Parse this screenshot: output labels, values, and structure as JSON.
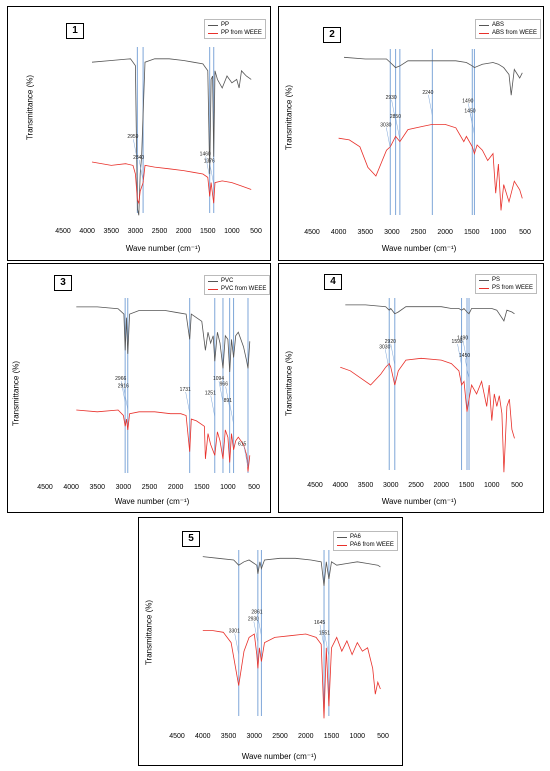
{
  "figure": {
    "xlabel": "Wave number (cm⁻¹)",
    "ylabel": "Transmittance (%)",
    "colors": {
      "reference": "#555555",
      "weee": "#e8302a",
      "marker": "#7ea6d8"
    }
  },
  "chart_data": [
    {
      "type": "line",
      "panel_label": "1",
      "xlabel": "Wave number (cm⁻¹)",
      "ylabel": "Transmittance (%)",
      "xlim": [
        4500,
        500
      ],
      "xticks": [
        4500,
        4000,
        3500,
        3000,
        2500,
        2000,
        1500,
        1000,
        500
      ],
      "legend": [
        "PP",
        "PP from WEEE"
      ],
      "legend_position": "top-right",
      "markers": [
        2959,
        2840,
        1460,
        1376
      ],
      "annotations": [
        {
          "label": "2959",
          "x": 2959,
          "y": 0.6
        },
        {
          "label": "2840",
          "x": 2840,
          "y": 0.72
        },
        {
          "label": "1460",
          "x": 1460,
          "y": 0.7
        },
        {
          "label": "1376",
          "x": 1376,
          "y": 0.74
        }
      ],
      "series": [
        {
          "name": "PP",
          "x": [
            3900,
            3500,
            3100,
            3000,
            2959,
            2930,
            2900,
            2870,
            2840,
            2800,
            2600,
            2300,
            2000,
            1800,
            1600,
            1500,
            1460,
            1430,
            1400,
            1376,
            1350,
            1300,
            1200,
            1100,
            1000,
            900,
            850,
            800,
            700,
            600
          ],
          "y": [
            0.1,
            0.09,
            0.08,
            0.12,
            0.95,
            0.99,
            0.75,
            0.65,
            0.4,
            0.1,
            0.08,
            0.08,
            0.09,
            0.1,
            0.11,
            0.15,
            0.75,
            0.2,
            0.18,
            0.65,
            0.15,
            0.2,
            0.25,
            0.18,
            0.22,
            0.2,
            0.25,
            0.15,
            0.18,
            0.2
          ]
        },
        {
          "name": "PP from WEEE",
          "x": [
            3900,
            3500,
            3200,
            3050,
            3000,
            2959,
            2930,
            2900,
            2840,
            2800,
            2600,
            2300,
            2000,
            1800,
            1600,
            1500,
            1460,
            1430,
            1376,
            1350,
            1200,
            1000,
            800,
            600
          ],
          "y": [
            0.68,
            0.7,
            0.69,
            0.7,
            0.75,
            0.9,
            0.92,
            0.85,
            0.8,
            0.7,
            0.71,
            0.72,
            0.73,
            0.74,
            0.75,
            0.77,
            0.88,
            0.8,
            0.92,
            0.8,
            0.79,
            0.8,
            0.82,
            0.84
          ]
        }
      ]
    },
    {
      "type": "line",
      "panel_label": "2",
      "xlabel": "Wave number (cm⁻¹)",
      "ylabel": "Transmittance (%)",
      "xlim": [
        4500,
        500
      ],
      "xticks": [
        4500,
        4000,
        3500,
        3000,
        2500,
        2000,
        1500,
        1000,
        500
      ],
      "legend": [
        "ABS",
        "ABS from WEEE"
      ],
      "legend_position": "top-right",
      "markers": [
        3030,
        2930,
        2850,
        2240,
        1490,
        1450
      ],
      "annotations": [
        {
          "label": "3030",
          "x": 3030,
          "y": 0.52
        },
        {
          "label": "2930",
          "x": 2930,
          "y": 0.36
        },
        {
          "label": "2850",
          "x": 2850,
          "y": 0.47
        },
        {
          "label": "2240",
          "x": 2240,
          "y": 0.33
        },
        {
          "label": "1490",
          "x": 1490,
          "y": 0.38
        },
        {
          "label": "1450",
          "x": 1450,
          "y": 0.44
        }
      ],
      "series": [
        {
          "name": "ABS",
          "x": [
            3900,
            3500,
            3100,
            3030,
            2930,
            2850,
            2700,
            2400,
            2240,
            2000,
            1800,
            1600,
            1490,
            1450,
            1300,
            1100,
            1000,
            900,
            800,
            760,
            700,
            600,
            550
          ],
          "y": [
            0.06,
            0.07,
            0.07,
            0.09,
            0.12,
            0.11,
            0.08,
            0.08,
            0.08,
            0.08,
            0.08,
            0.09,
            0.11,
            0.12,
            0.1,
            0.09,
            0.1,
            0.12,
            0.16,
            0.28,
            0.13,
            0.18,
            0.15
          ]
        },
        {
          "name": "ABS from WEEE",
          "x": [
            4000,
            3800,
            3600,
            3450,
            3300,
            3100,
            3030,
            2930,
            2850,
            2700,
            2400,
            2240,
            2000,
            1800,
            1650,
            1600,
            1490,
            1450,
            1400,
            1300,
            1200,
            1100,
            1050,
            1000,
            950,
            900,
            800,
            700,
            600,
            550
          ],
          "y": [
            0.53,
            0.54,
            0.58,
            0.7,
            0.75,
            0.6,
            0.58,
            0.52,
            0.55,
            0.48,
            0.46,
            0.45,
            0.45,
            0.47,
            0.55,
            0.52,
            0.58,
            0.62,
            0.57,
            0.6,
            0.66,
            0.62,
            0.85,
            0.68,
            0.95,
            0.8,
            0.9,
            0.78,
            0.83,
            0.88
          ]
        }
      ]
    },
    {
      "type": "line",
      "panel_label": "3",
      "xlabel": "Wave number (cm⁻¹)",
      "ylabel": "Transmittance (%)",
      "xlim": [
        4500,
        500
      ],
      "xticks": [
        4500,
        4000,
        3500,
        3000,
        2500,
        2000,
        1500,
        1000,
        500
      ],
      "legend": [
        "PVC",
        "PVC from WEEE"
      ],
      "legend_position": "top-right",
      "markers": [
        2966,
        2916,
        1731,
        1251,
        1094,
        966,
        891,
        615
      ],
      "annotations": [
        {
          "label": "2966",
          "x": 2966,
          "y": 0.52
        },
        {
          "label": "2916",
          "x": 2916,
          "y": 0.56
        },
        {
          "label": "1731",
          "x": 1731,
          "y": 0.58
        },
        {
          "label": "1251",
          "x": 1251,
          "y": 0.6
        },
        {
          "label": "1094",
          "x": 1094,
          "y": 0.52
        },
        {
          "label": "966",
          "x": 966,
          "y": 0.55
        },
        {
          "label": "891",
          "x": 891,
          "y": 0.64
        },
        {
          "label": "615",
          "x": 615,
          "y": 0.88
        }
      ],
      "series": [
        {
          "name": "PVC",
          "x": [
            3900,
            3500,
            3100,
            2990,
            2966,
            2940,
            2916,
            2880,
            2700,
            2500,
            2200,
            2000,
            1800,
            1731,
            1700,
            1600,
            1500,
            1430,
            1380,
            1330,
            1280,
            1251,
            1200,
            1150,
            1094,
            1050,
            1000,
            966,
            930,
            891,
            850,
            800,
            700,
            640,
            615,
            580
          ],
          "y": [
            0.06,
            0.06,
            0.07,
            0.1,
            0.3,
            0.12,
            0.32,
            0.1,
            0.08,
            0.08,
            0.08,
            0.09,
            0.1,
            0.24,
            0.1,
            0.12,
            0.14,
            0.3,
            0.2,
            0.26,
            0.22,
            0.36,
            0.2,
            0.26,
            0.4,
            0.22,
            0.24,
            0.42,
            0.24,
            0.34,
            0.22,
            0.2,
            0.28,
            0.36,
            0.4,
            0.25
          ]
        },
        {
          "name": "PVC from WEEE",
          "x": [
            3900,
            3500,
            3100,
            3000,
            2966,
            2940,
            2916,
            2880,
            2700,
            2400,
            2100,
            1900,
            1800,
            1731,
            1700,
            1600,
            1450,
            1430,
            1380,
            1330,
            1251,
            1200,
            1150,
            1094,
            1050,
            1000,
            966,
            930,
            891,
            850,
            800,
            700,
            640,
            615,
            580
          ],
          "y": [
            0.63,
            0.64,
            0.63,
            0.66,
            0.72,
            0.68,
            0.74,
            0.65,
            0.64,
            0.64,
            0.65,
            0.65,
            0.66,
            0.86,
            0.68,
            0.69,
            0.72,
            0.9,
            0.76,
            0.82,
            0.88,
            0.75,
            0.8,
            0.9,
            0.74,
            0.78,
            0.92,
            0.76,
            0.85,
            0.8,
            0.78,
            0.82,
            0.88,
            0.97,
            0.88
          ]
        }
      ]
    },
    {
      "type": "line",
      "panel_label": "4",
      "xlabel": "Wave number (cm⁻¹)",
      "ylabel": "Transmittance (%)",
      "xlim": [
        4500,
        500
      ],
      "xticks": [
        4500,
        4000,
        3500,
        3000,
        2500,
        2000,
        1500,
        1000,
        500
      ],
      "legend": [
        "PS",
        "PS from WEEE"
      ],
      "legend_position": "top-right",
      "markers": [
        3030,
        2920,
        1598,
        1490,
        1450
      ],
      "annotations": [
        {
          "label": "3030",
          "x": 3030,
          "y": 0.35
        },
        {
          "label": "2920",
          "x": 2920,
          "y": 0.32
        },
        {
          "label": "1598",
          "x": 1598,
          "y": 0.32
        },
        {
          "label": "1490",
          "x": 1490,
          "y": 0.3
        },
        {
          "label": "1450",
          "x": 1450,
          "y": 0.4
        }
      ],
      "series": [
        {
          "name": "PS",
          "x": [
            3900,
            3500,
            3100,
            3030,
            3000,
            2920,
            2850,
            2700,
            2400,
            2000,
            1800,
            1650,
            1598,
            1550,
            1490,
            1450,
            1400,
            1300,
            1100,
            1000,
            900,
            760,
            700,
            600,
            550
          ],
          "y": [
            0.05,
            0.05,
            0.06,
            0.08,
            0.07,
            0.1,
            0.09,
            0.06,
            0.06,
            0.06,
            0.07,
            0.07,
            0.08,
            0.07,
            0.09,
            0.1,
            0.07,
            0.07,
            0.07,
            0.07,
            0.08,
            0.14,
            0.08,
            0.09,
            0.1
          ]
        },
        {
          "name": "PS from WEEE",
          "x": [
            4000,
            3800,
            3600,
            3400,
            3200,
            3100,
            3030,
            3000,
            2920,
            2850,
            2700,
            2400,
            2000,
            1800,
            1650,
            1598,
            1550,
            1490,
            1450,
            1400,
            1300,
            1200,
            1100,
            1050,
            1000,
            950,
            900,
            850,
            800,
            760,
            700,
            650,
            600,
            550
          ],
          "y": [
            0.4,
            0.42,
            0.46,
            0.5,
            0.44,
            0.4,
            0.38,
            0.4,
            0.5,
            0.42,
            0.36,
            0.35,
            0.36,
            0.38,
            0.42,
            0.5,
            0.48,
            0.65,
            0.58,
            0.5,
            0.55,
            0.48,
            0.62,
            0.5,
            0.7,
            0.55,
            0.62,
            0.56,
            0.66,
            0.99,
            0.62,
            0.58,
            0.75,
            0.8
          ]
        }
      ]
    },
    {
      "type": "line",
      "panel_label": "5",
      "xlabel": "Wave number (cm⁻¹)",
      "ylabel": "Transmittance (%)",
      "xlim": [
        4500,
        500
      ],
      "xticks": [
        4500,
        4000,
        3500,
        3000,
        2500,
        2000,
        1500,
        1000,
        500
      ],
      "legend": [
        "PA6",
        "PA6 from WEEE"
      ],
      "legend_position": "top-right",
      "markers": [
        3301,
        2930,
        2861,
        1645,
        1551
      ],
      "annotations": [
        {
          "label": "3301",
          "x": 3301,
          "y": 0.55
        },
        {
          "label": "2930",
          "x": 2930,
          "y": 0.48
        },
        {
          "label": "2861",
          "x": 2861,
          "y": 0.44
        },
        {
          "label": "1645",
          "x": 1645,
          "y": 0.5
        },
        {
          "label": "1551",
          "x": 1551,
          "y": 0.56
        }
      ],
      "series": [
        {
          "name": "PA6",
          "x": [
            4000,
            3700,
            3400,
            3301,
            3200,
            3100,
            2950,
            2930,
            2890,
            2861,
            2800,
            2500,
            2200,
            1900,
            1700,
            1645,
            1600,
            1551,
            1500,
            1400,
            1200,
            1000,
            800,
            600,
            550
          ],
          "y": [
            0.05,
            0.06,
            0.07,
            0.1,
            0.08,
            0.07,
            0.1,
            0.15,
            0.08,
            0.12,
            0.07,
            0.06,
            0.06,
            0.07,
            0.08,
            0.22,
            0.08,
            0.18,
            0.08,
            0.1,
            0.09,
            0.08,
            0.09,
            0.1,
            0.11
          ]
        },
        {
          "name": "PA6 from WEEE",
          "x": [
            4000,
            3800,
            3600,
            3450,
            3301,
            3200,
            3100,
            3000,
            2950,
            2930,
            2900,
            2861,
            2800,
            2600,
            2300,
            2000,
            1800,
            1700,
            1645,
            1600,
            1551,
            1500,
            1400,
            1300,
            1200,
            1100,
            1000,
            900,
            800,
            700,
            650,
            600,
            550
          ],
          "y": [
            0.48,
            0.48,
            0.49,
            0.55,
            0.8,
            0.6,
            0.52,
            0.5,
            0.62,
            0.7,
            0.58,
            0.66,
            0.55,
            0.52,
            0.51,
            0.5,
            0.52,
            0.56,
            0.99,
            0.58,
            0.92,
            0.58,
            0.52,
            0.6,
            0.54,
            0.62,
            0.55,
            0.6,
            0.58,
            0.7,
            0.85,
            0.78,
            0.82
          ]
        }
      ]
    }
  ]
}
